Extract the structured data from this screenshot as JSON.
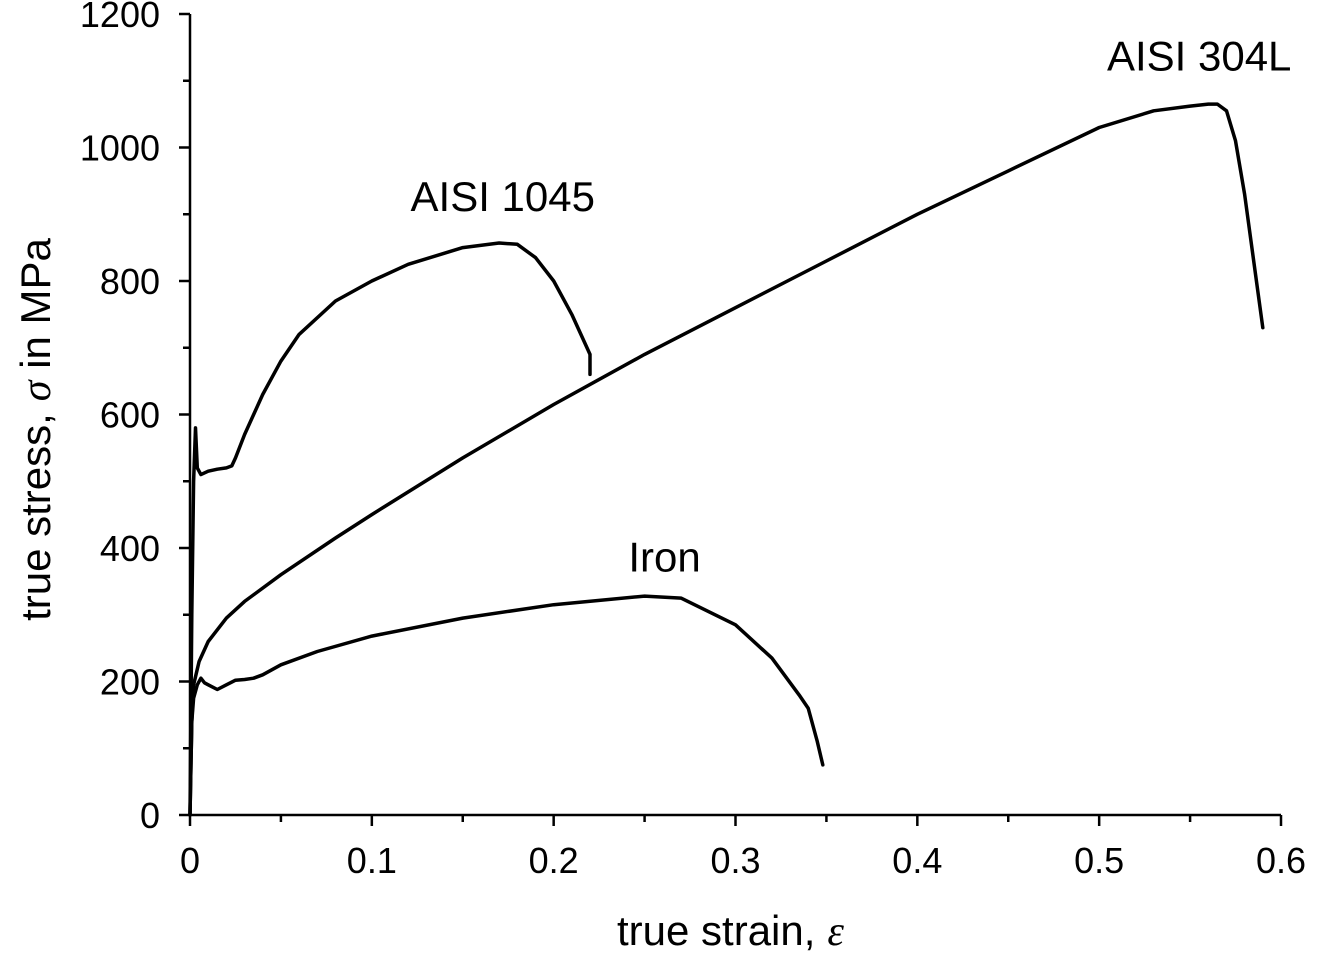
{
  "chart_data": {
    "type": "line",
    "title": "",
    "xlabel": "true strain,",
    "xlabel_symbol": "ε",
    "ylabel": "true stress,",
    "ylabel_symbol": "σ",
    "ylabel_suffix": " in MPa",
    "xlim": [
      0,
      0.6
    ],
    "ylim": [
      0,
      1200
    ],
    "x_ticks": [
      0,
      0.1,
      0.2,
      0.3,
      0.4,
      0.5,
      0.6
    ],
    "x_tick_labels": [
      "0",
      "0.1",
      "0.2",
      "0.3",
      "0.4",
      "0.5",
      "0.6"
    ],
    "y_ticks": [
      0,
      200,
      400,
      600,
      800,
      1000,
      1200
    ],
    "y_tick_labels": [
      "0",
      "200",
      "400",
      "600",
      "800",
      "1000",
      "1200"
    ],
    "grid": false,
    "legend": "none",
    "series": [
      {
        "name": "AISI 304L",
        "x": [
          0,
          0.001,
          0.002,
          0.005,
          0.01,
          0.02,
          0.03,
          0.05,
          0.08,
          0.1,
          0.15,
          0.2,
          0.25,
          0.3,
          0.35,
          0.4,
          0.45,
          0.5,
          0.53,
          0.55,
          0.56,
          0.565,
          0.57,
          0.575,
          0.58,
          0.585,
          0.59
        ],
        "y": [
          0,
          140,
          195,
          230,
          260,
          295,
          320,
          360,
          415,
          450,
          535,
          615,
          690,
          760,
          830,
          900,
          965,
          1030,
          1055,
          1062,
          1065,
          1065,
          1055,
          1010,
          930,
          830,
          730
        ]
      },
      {
        "name": "AISI 1045",
        "x": [
          0,
          0.001,
          0.002,
          0.003,
          0.004,
          0.006,
          0.01,
          0.015,
          0.02,
          0.023,
          0.025,
          0.03,
          0.04,
          0.05,
          0.06,
          0.08,
          0.1,
          0.12,
          0.15,
          0.17,
          0.18,
          0.19,
          0.2,
          0.21,
          0.215,
          0.22,
          0.22
        ],
        "y": [
          0,
          300,
          500,
          580,
          520,
          510,
          515,
          518,
          520,
          523,
          535,
          570,
          630,
          680,
          720,
          770,
          800,
          825,
          850,
          857,
          855,
          835,
          800,
          750,
          720,
          690,
          660
        ]
      },
      {
        "name": "Iron",
        "x": [
          0,
          0.001,
          0.002,
          0.004,
          0.006,
          0.008,
          0.01,
          0.015,
          0.02,
          0.025,
          0.03,
          0.035,
          0.04,
          0.05,
          0.07,
          0.1,
          0.15,
          0.2,
          0.25,
          0.27,
          0.3,
          0.32,
          0.335,
          0.34,
          0.345,
          0.348
        ],
        "y": [
          0,
          140,
          175,
          195,
          205,
          198,
          195,
          188,
          195,
          202,
          203,
          205,
          210,
          225,
          245,
          268,
          295,
          315,
          328,
          325,
          285,
          235,
          180,
          160,
          110,
          75
        ]
      }
    ],
    "annotations": [
      {
        "text": "AISI 304L",
        "x": 0.555,
        "y": 1115
      },
      {
        "text": "AISI 1045",
        "x": 0.172,
        "y": 905
      },
      {
        "text": "Iron",
        "x": 0.261,
        "y": 365
      }
    ]
  }
}
